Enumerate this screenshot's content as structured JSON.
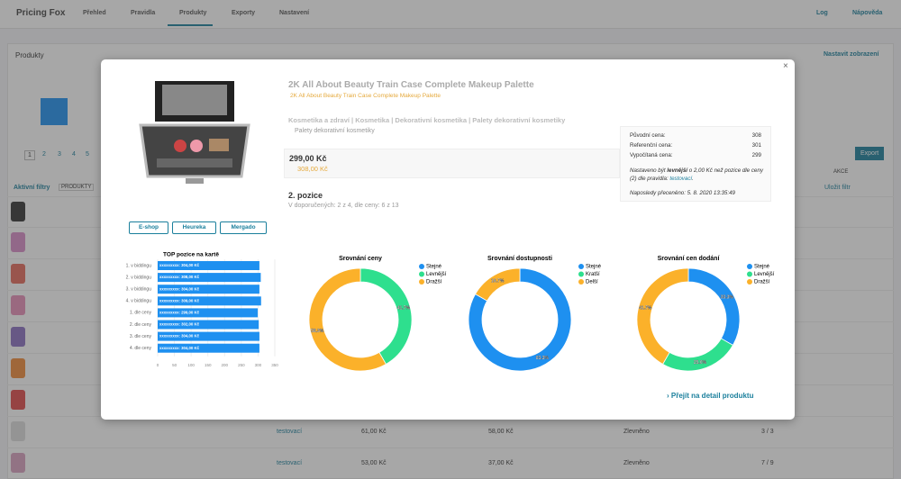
{
  "nav": {
    "brand": "Pricing Fox",
    "items": [
      "Přehled",
      "Pravidla",
      "Produkty",
      "Exporty",
      "Nastavení"
    ],
    "right": [
      "Log",
      "Nápověda"
    ]
  },
  "background": {
    "heading": "Produkty",
    "settings": "Nastavit zobrazení",
    "filters": "Aktivní filtry",
    "filter_tag": "PRODUKTY",
    "pages": [
      "1",
      "2",
      "3",
      "4",
      "5"
    ],
    "actions_header": "AKCE",
    "export": "Export",
    "save_filter": "Uložit filtr",
    "rows": [
      [
        "testovací",
        "61,00 Kč",
        "58,00 Kč",
        "Zlevněno",
        "3 / 3"
      ],
      [
        "testovací",
        "53,00 Kč",
        "37,00 Kč",
        "Zlevněno",
        "7 / 9"
      ]
    ]
  },
  "modal": {
    "title": "2K All About Beauty Train Case Complete Makeup Palette",
    "subtitle": "2K All About Beauty Train Case Complete Makeup Palette",
    "category_path": "Kosmetika a zdraví | Kosmetika | Dekorativní kosmetika | Palety dekorativní kosmetiky",
    "category": "Palety dekorativní kosmetiky",
    "price": "299,00 Kč",
    "old_price": "308,00 Kč",
    "position": "2. pozice",
    "position_detail": "V doporučených: 2 z 4, dle ceny: 6 z 13",
    "buttons": [
      "E-shop",
      "Heureka",
      "Mergado"
    ],
    "info": {
      "rows": [
        [
          "Původní cena:",
          "308"
        ],
        [
          "Referenční cena:",
          "301"
        ],
        [
          "Vypočítaná cena:",
          "299"
        ]
      ],
      "note": [
        "Nastaveno být ",
        "levnější",
        " o 2,00 Kč než pozice dle ceny (2) dle pravidla: ",
        "testovací",
        "."
      ],
      "last": "Naposledy přeceněno: 5. 8. 2020 13:35:49"
    },
    "detail_link": "Přejít na detail produktu"
  },
  "chart_data": [
    {
      "type": "bar",
      "orientation": "horizontal",
      "title": "TOP pozice na kartě",
      "categories": [
        "1. v biddingu",
        "2. v biddingu",
        "3. v biddingu",
        "4. v biddingu",
        "1. dle ceny",
        "2. dle ceny",
        "3. dle ceny",
        "4. dle ceny"
      ],
      "values": [
        304,
        308,
        304,
        309,
        299,
        302,
        304,
        304
      ],
      "value_labels": [
        "xxxxxxxxx: 304,00 Kč",
        "xxxxxxxxx: 308,00 Kč",
        "xxxxxxxxx: 304,00 Kč",
        "xxxxxxxxx: 309,00 Kč",
        "xxxxxxxxx: 299,00 Kč",
        "xxxxxxxxx: 302,00 Kč",
        "xxxxxxxxx: 304,00 Kč",
        "xxxxxxxxx: 304,00 Kč"
      ],
      "color": "#1e90f0",
      "xlim": [
        0,
        350
      ],
      "xticks": [
        0,
        50,
        100,
        150,
        200,
        250,
        300,
        350
      ]
    },
    {
      "type": "donut",
      "title": "Srovnání ceny",
      "categories": [
        "Stejné",
        "Levnější",
        "Dražší"
      ],
      "values": [
        0,
        41.7,
        58.3
      ],
      "value_labels": [
        null,
        "41.7%",
        "58.3%"
      ],
      "colors": [
        "#1e90f0",
        "#2edf8e",
        "#fbb12a"
      ],
      "legend": "right"
    },
    {
      "type": "donut",
      "title": "Srovnání dostupnosti",
      "categories": [
        "Stejné",
        "Kratší",
        "Delší"
      ],
      "values": [
        83.3,
        0,
        16.7
      ],
      "value_labels": [
        "83.3%",
        null,
        "16.7%"
      ],
      "colors": [
        "#1e90f0",
        "#2edf8e",
        "#fbb12a"
      ],
      "legend": "right"
    },
    {
      "type": "donut",
      "title": "Srovnání cen dodání",
      "categories": [
        "Stejné",
        "Levnější",
        "Dražší"
      ],
      "values": [
        33.3,
        25,
        41.7
      ],
      "value_labels": [
        "33.3%",
        "25.0%",
        "41.7%"
      ],
      "colors": [
        "#1e90f0",
        "#2edf8e",
        "#fbb12a"
      ],
      "legend": "right"
    }
  ]
}
